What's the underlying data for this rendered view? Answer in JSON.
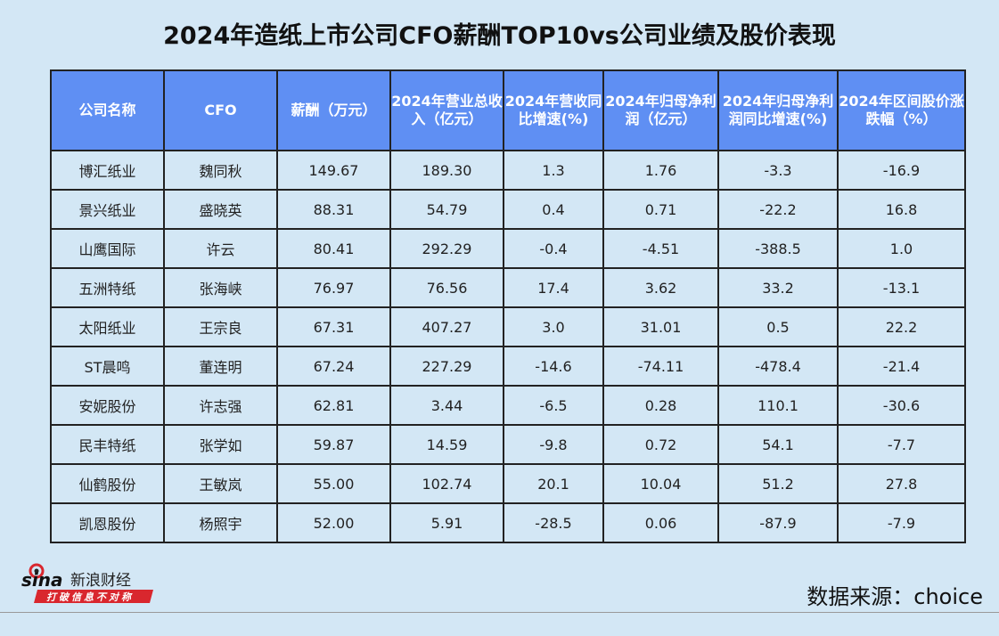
{
  "title": "2024年造纸上市公司CFO薪酬TOP10vs公司业绩及股价表现",
  "headers": [
    "公司名称",
    "CFO",
    "薪酬（万元）",
    "2024年营业总收入（亿元）",
    "2024年营收同比增速(%)",
    "2024年归母净利润（亿元）",
    "2024年归母净利润同比增速(%)",
    "2024年区间股价涨跌幅（%）"
  ],
  "rows": [
    [
      "博汇纸业",
      "魏同秋",
      "149.67",
      "189.30",
      "1.3",
      "1.76",
      "-3.3",
      "-16.9"
    ],
    [
      "景兴纸业",
      "盛晓英",
      "88.31",
      "54.79",
      "0.4",
      "0.71",
      "-22.2",
      "16.8"
    ],
    [
      "山鹰国际",
      "许云",
      "80.41",
      "292.29",
      "-0.4",
      "-4.51",
      "-388.5",
      "1.0"
    ],
    [
      "五洲特纸",
      "张海峡",
      "76.97",
      "76.56",
      "17.4",
      "3.62",
      "33.2",
      "-13.1"
    ],
    [
      "太阳纸业",
      "王宗良",
      "67.31",
      "407.27",
      "3.0",
      "31.01",
      "0.5",
      "22.2"
    ],
    [
      "ST晨鸣",
      "董连明",
      "67.24",
      "227.29",
      "-14.6",
      "-74.11",
      "-478.4",
      "-21.4"
    ],
    [
      "安妮股份",
      "许志强",
      "62.81",
      "3.44",
      "-6.5",
      "0.28",
      "110.1",
      "-30.6"
    ],
    [
      "民丰特纸",
      "张学如",
      "59.87",
      "14.59",
      "-9.8",
      "0.72",
      "54.1",
      "-7.7"
    ],
    [
      "仙鹤股份",
      "王敏岚",
      "55.00",
      "102.74",
      "20.1",
      "10.04",
      "51.2",
      "27.8"
    ],
    [
      "凯恩股份",
      "杨照宇",
      "52.00",
      "5.91",
      "-28.5",
      "0.06",
      "-87.9",
      "-7.9"
    ]
  ],
  "logo": {
    "brand": "sina",
    "name": "新浪财经",
    "slogan": "打破信息不对称"
  },
  "source": "数据来源：choice"
}
